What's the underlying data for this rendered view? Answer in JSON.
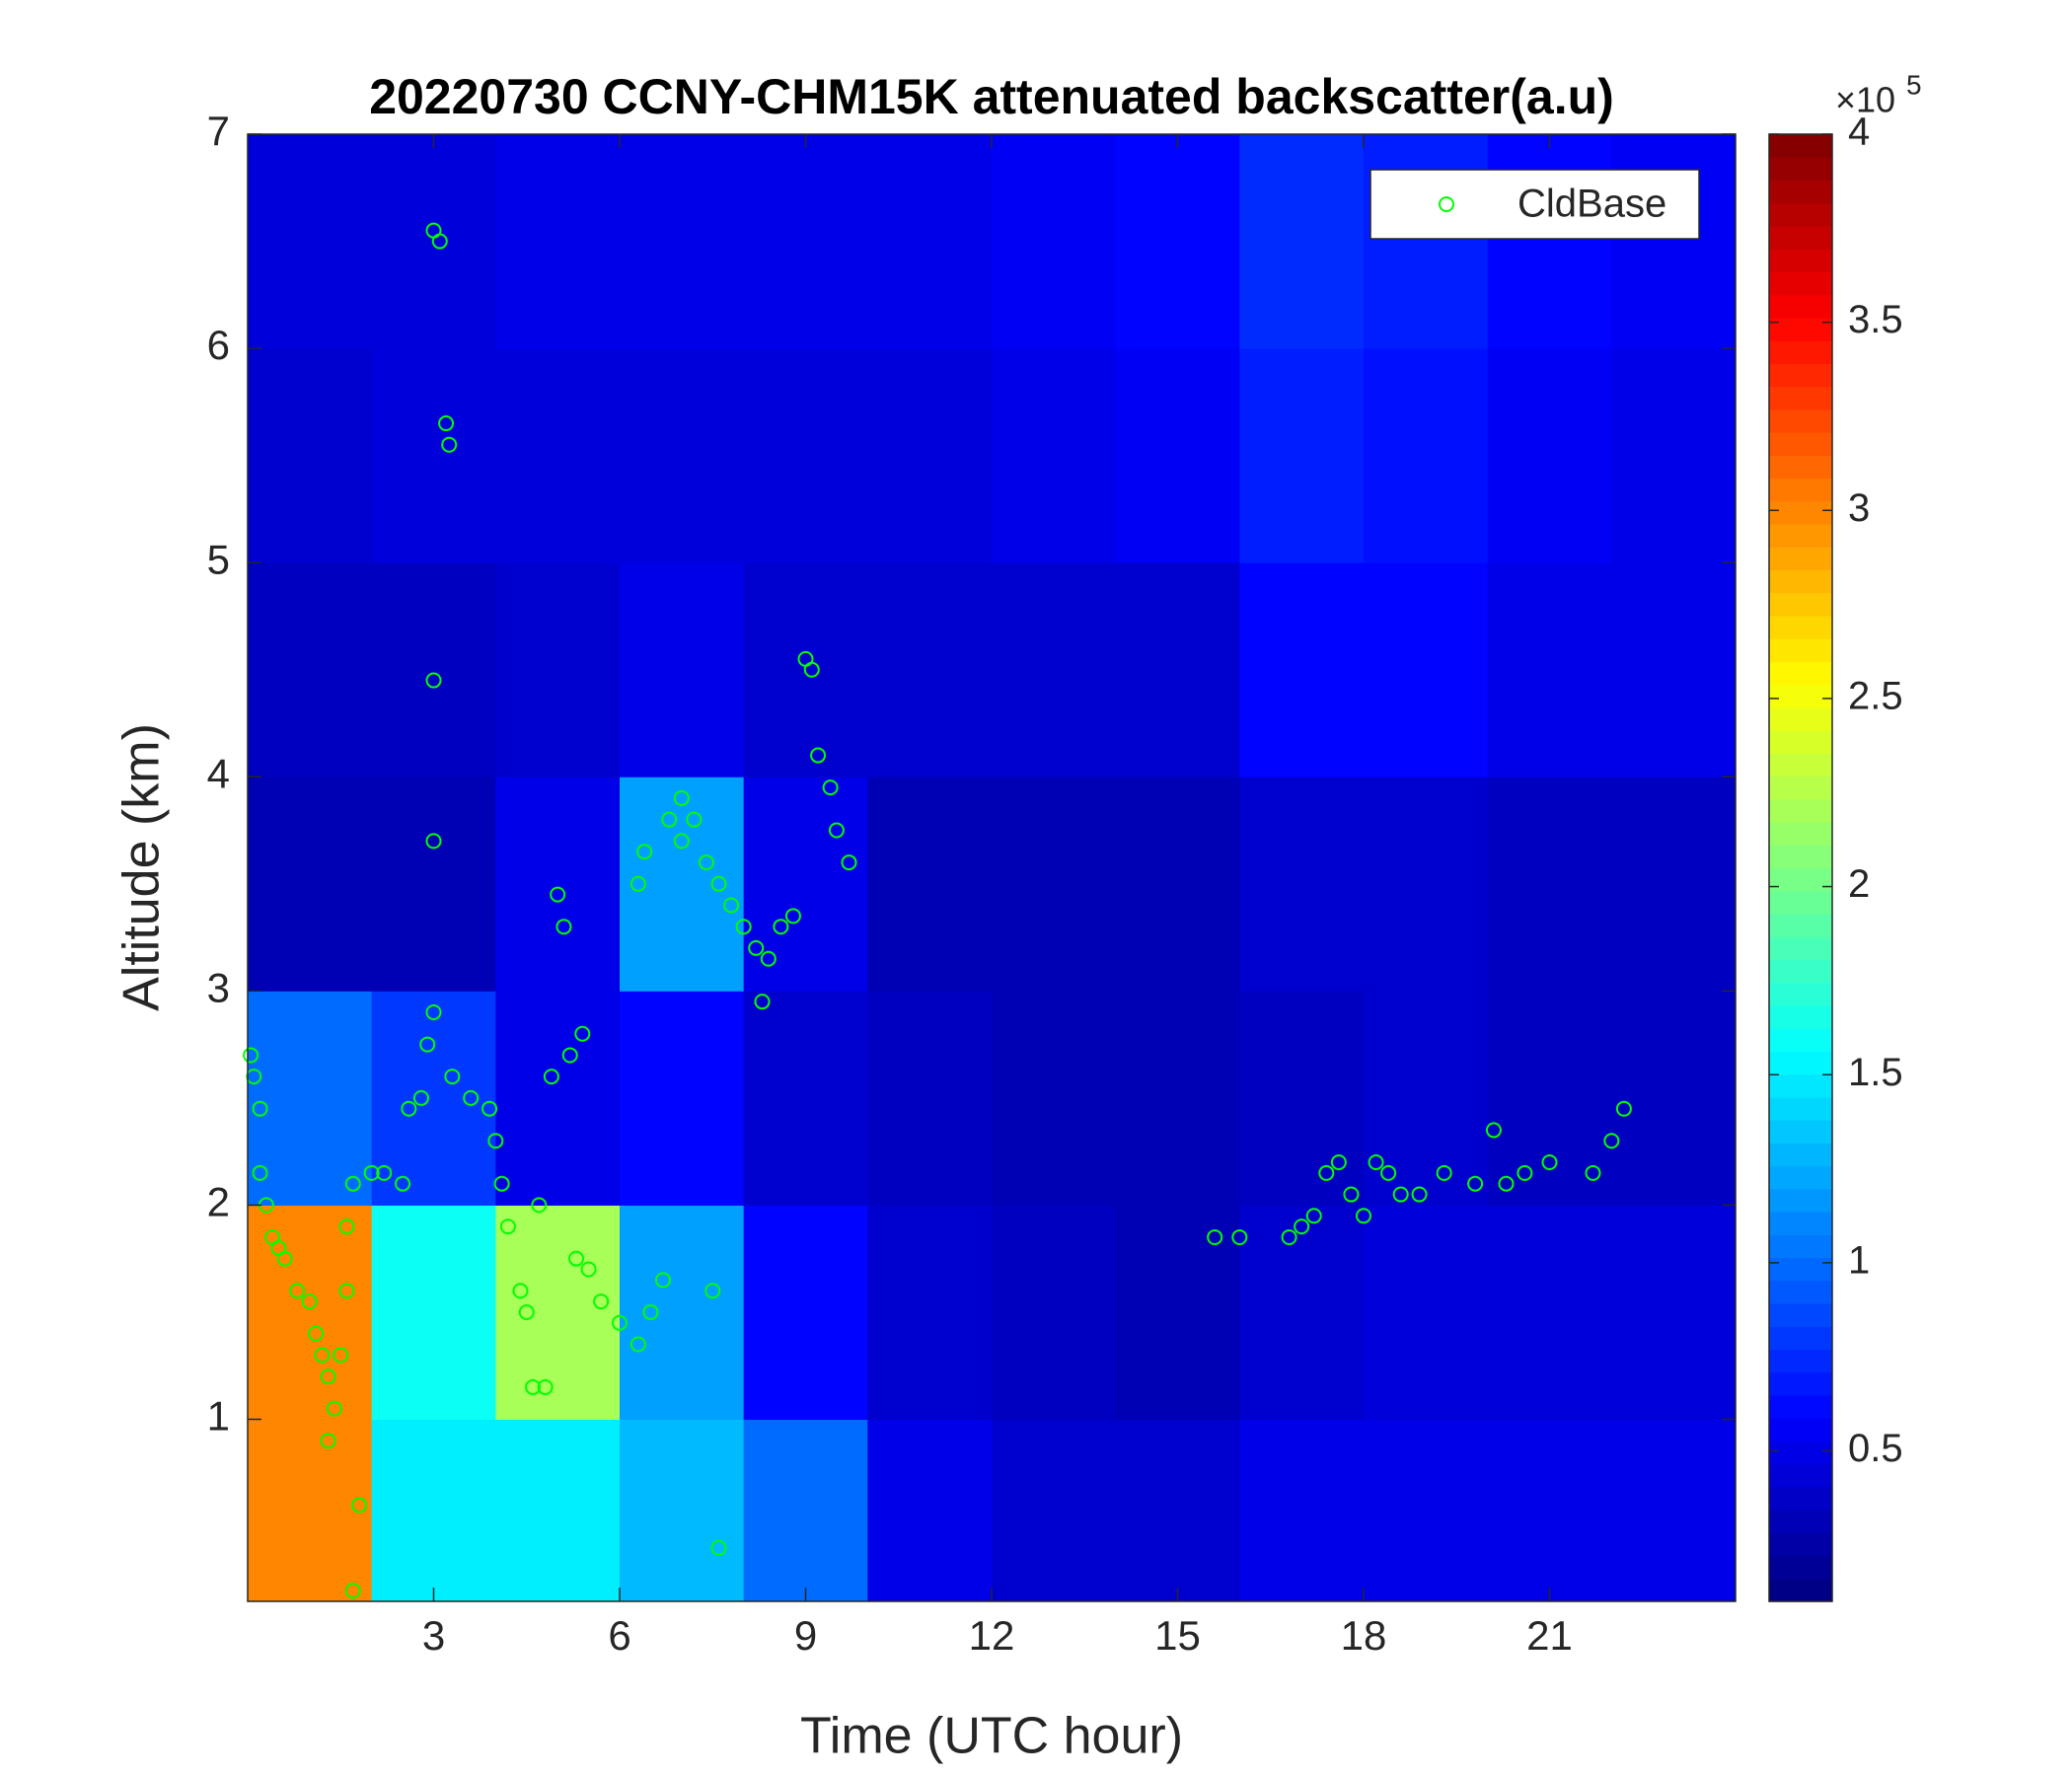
{
  "chart_data": {
    "type": "heatmap",
    "title": "20220730 CCNY-CHM15K attenuated backscatter(a.u)",
    "xlabel": "Time (UTC hour)",
    "ylabel": "Altitude (km)",
    "xlim": [
      0,
      24
    ],
    "ylim": [
      0.15,
      7
    ],
    "xticks": [
      3,
      6,
      9,
      12,
      15,
      18,
      21
    ],
    "yticks": [
      1,
      2,
      3,
      4,
      5,
      6,
      7
    ],
    "x_edges": [
      0,
      2,
      4,
      6,
      8,
      10,
      12,
      14,
      16,
      18,
      20,
      22,
      24
    ],
    "y_edges": [
      0.15,
      1,
      2,
      3,
      4,
      5,
      6,
      7
    ],
    "z": [
      [
        3,
        1.5,
        1.5,
        1.3,
        1,
        0.5,
        0.4,
        0.4,
        0.5,
        0.5,
        0.5,
        0.5
      ],
      [
        3,
        1.6,
        2.2,
        1.2,
        0.6,
        0.4,
        0.35,
        0.3,
        0.4,
        0.45,
        0.45,
        0.45
      ],
      [
        1,
        0.8,
        0.5,
        0.6,
        0.4,
        0.35,
        0.3,
        0.3,
        0.35,
        0.4,
        0.35,
        0.35
      ],
      [
        0.3,
        0.3,
        0.5,
        1.2,
        0.5,
        0.3,
        0.3,
        0.3,
        0.4,
        0.4,
        0.35,
        0.35
      ],
      [
        0.35,
        0.35,
        0.4,
        0.5,
        0.4,
        0.4,
        0.4,
        0.4,
        0.6,
        0.6,
        0.5,
        0.5
      ],
      [
        0.4,
        0.45,
        0.45,
        0.45,
        0.45,
        0.45,
        0.5,
        0.55,
        0.7,
        0.65,
        0.55,
        0.5
      ],
      [
        0.45,
        0.45,
        0.5,
        0.5,
        0.5,
        0.5,
        0.55,
        0.6,
        0.75,
        0.7,
        0.6,
        0.55
      ]
    ],
    "clim": [
      0.1,
      4
    ],
    "colorbar_ticks": [
      0.5,
      1,
      1.5,
      2,
      2.5,
      3,
      3.5,
      4
    ],
    "colorbar_multiplier": "×10",
    "colorbar_exponent": "5",
    "colormap": "jet",
    "legend_position": "upper right",
    "series": [
      {
        "name": "CldBase",
        "color": "#00ff00",
        "x": [
          0.05,
          0.1,
          0.2,
          0.2,
          0.3,
          0.4,
          0.5,
          0.6,
          0.8,
          1.0,
          1.1,
          1.2,
          1.3,
          1.4,
          1.3,
          1.5,
          1.6,
          1.6,
          1.7,
          1.8,
          1.7,
          2.0,
          2.2,
          2.5,
          2.6,
          2.8,
          2.9,
          3.0,
          3.0,
          3.0,
          3.0,
          3.1,
          3.2,
          3.25,
          3.3,
          3.6,
          3.9,
          4.0,
          4.1,
          4.2,
          4.4,
          4.5,
          4.6,
          4.8,
          4.7,
          4.9,
          5.0,
          5.1,
          5.2,
          5.4,
          5.3,
          5.5,
          5.7,
          6.0,
          6.3,
          6.5,
          6.7,
          6.3,
          6.4,
          6.8,
          7.0,
          7.2,
          7.4,
          7.6,
          7.8,
          8.0,
          8.2,
          8.4,
          8.6,
          8.8,
          7.6,
          7.5,
          7.0,
          9.0,
          9.1,
          9.2,
          9.4,
          9.5,
          9.7,
          8.3,
          15.6,
          16.0,
          16.8,
          17.0,
          17.2,
          17.4,
          17.6,
          17.8,
          18.0,
          18.2,
          18.4,
          18.6,
          18.9,
          19.3,
          19.8,
          20.1,
          20.3,
          20.6,
          21.0,
          21.7,
          22.0,
          22.2
        ],
        "y": [
          2.7,
          2.6,
          2.45,
          2.15,
          2.0,
          1.85,
          1.8,
          1.75,
          1.6,
          1.55,
          1.4,
          1.3,
          1.2,
          1.05,
          0.9,
          1.3,
          1.6,
          1.9,
          2.1,
          0.6,
          0.2,
          2.15,
          2.15,
          2.1,
          2.45,
          2.5,
          2.75,
          2.9,
          3.7,
          4.45,
          6.55,
          6.5,
          5.65,
          5.55,
          2.6,
          2.5,
          2.45,
          2.3,
          2.1,
          1.9,
          1.6,
          1.5,
          1.15,
          1.15,
          2.0,
          2.6,
          3.45,
          3.3,
          2.7,
          2.8,
          1.75,
          1.7,
          1.55,
          1.45,
          1.35,
          1.5,
          1.65,
          3.5,
          3.65,
          3.8,
          3.7,
          3.8,
          3.6,
          3.5,
          3.4,
          3.3,
          3.2,
          3.15,
          3.3,
          3.35,
          0.4,
          1.6,
          3.9,
          4.55,
          4.5,
          4.1,
          3.95,
          3.75,
          3.6,
          2.95,
          1.85,
          1.85,
          1.85,
          1.9,
          1.95,
          2.15,
          2.2,
          2.05,
          1.95,
          2.2,
          2.15,
          2.05,
          2.05,
          2.15,
          2.1,
          2.35,
          2.1,
          2.15,
          2.2,
          2.15,
          2.3,
          2.45
        ]
      }
    ]
  }
}
